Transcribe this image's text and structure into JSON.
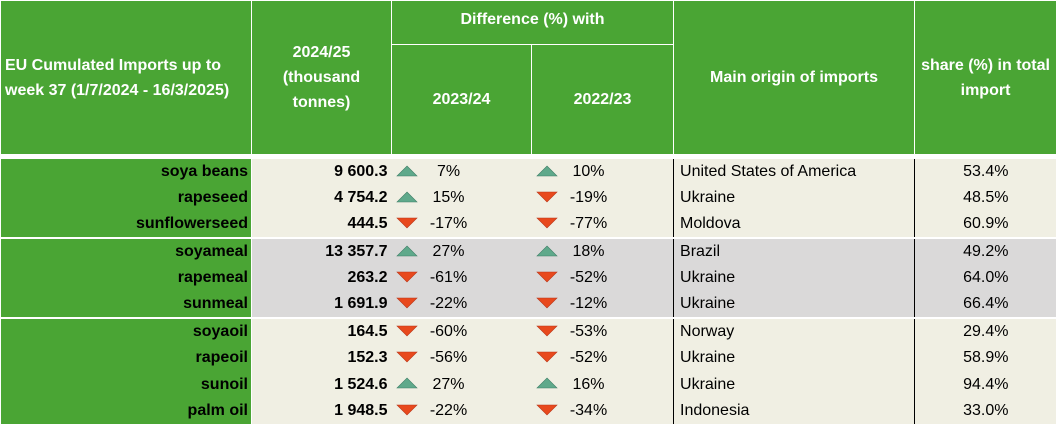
{
  "header": {
    "title": "EU Cumulated Imports up to week 37 (1/7/2024 - 16/3/2025)",
    "volume": "2024/25 (thousand tonnes)",
    "difference": "Difference (%) with",
    "year1": "2023/24",
    "year2": "2022/23",
    "origin": "Main origin of imports",
    "share": "share (%) in total import"
  },
  "colors": {
    "header_green": "#4aa534",
    "up_arrow": "#5fa98b",
    "down_arrow": "#e8491d",
    "band_light": "#f0efe3",
    "band_gray": "#dad9d9"
  },
  "rows": [
    {
      "product": "soya beans",
      "volume": "9 600.3",
      "diff1": "7%",
      "dir1": "up",
      "diff2": "10%",
      "dir2": "up",
      "origin": "United States of America",
      "share": "53.4%"
    },
    {
      "product": "rapeseed",
      "volume": "4 754.2",
      "diff1": "15%",
      "dir1": "up",
      "diff2": "-19%",
      "dir2": "down",
      "origin": "Ukraine",
      "share": "48.5%"
    },
    {
      "product": "sunflowerseed",
      "volume": "444.5",
      "diff1": "-17%",
      "dir1": "down",
      "diff2": "-77%",
      "dir2": "down",
      "origin": "Moldova",
      "share": "60.9%"
    },
    {
      "product": "soyameal",
      "volume": "13 357.7",
      "diff1": "27%",
      "dir1": "up",
      "diff2": "18%",
      "dir2": "up",
      "origin": "Brazil",
      "share": "49.2%"
    },
    {
      "product": "rapemeal",
      "volume": "263.2",
      "diff1": "-61%",
      "dir1": "down",
      "diff2": "-52%",
      "dir2": "down",
      "origin": "Ukraine",
      "share": "64.0%"
    },
    {
      "product": "sunmeal",
      "volume": "1 691.9",
      "diff1": "-22%",
      "dir1": "down",
      "diff2": "-12%",
      "dir2": "down",
      "origin": "Ukraine",
      "share": "66.4%"
    },
    {
      "product": "soyaoil",
      "volume": "164.5",
      "diff1": "-60%",
      "dir1": "down",
      "diff2": "-53%",
      "dir2": "down",
      "origin": "Norway",
      "share": "29.4%"
    },
    {
      "product": "rapeoil",
      "volume": "152.3",
      "diff1": "-56%",
      "dir1": "down",
      "diff2": "-52%",
      "dir2": "down",
      "origin": "Ukraine",
      "share": "58.9%"
    },
    {
      "product": "sunoil",
      "volume": "1 524.6",
      "diff1": "27%",
      "dir1": "up",
      "diff2": "16%",
      "dir2": "up",
      "origin": "Ukraine",
      "share": "94.4%"
    },
    {
      "product": "palm oil",
      "volume": "1 948.5",
      "diff1": "-22%",
      "dir1": "down",
      "diff2": "-34%",
      "dir2": "down",
      "origin": "Indonesia",
      "share": "33.0%"
    }
  ]
}
